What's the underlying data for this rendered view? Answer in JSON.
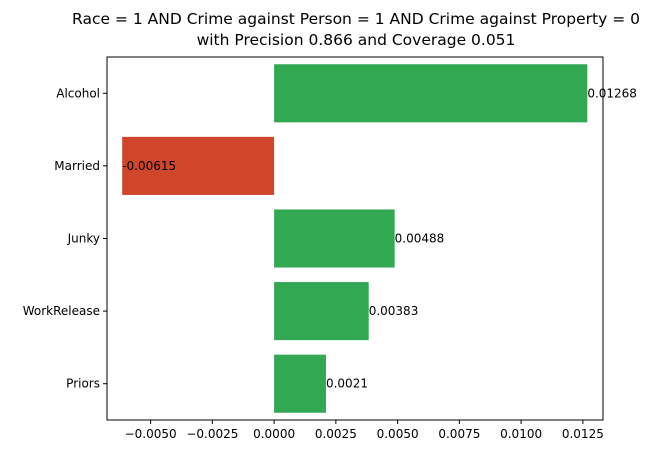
{
  "chart_data": {
    "type": "bar",
    "orientation": "horizontal",
    "title_lines": [
      "Race = 1 AND Crime against Person = 1 AND Crime against Property = 0",
      "with Precision 0.866 and Coverage 0.051"
    ],
    "xlabel": "",
    "ylabel": "",
    "categories": [
      "Alcohol",
      "Married",
      "Junky",
      "WorkRelease",
      "Priors"
    ],
    "values": [
      0.01268,
      -0.00615,
      0.00488,
      0.00383,
      0.0021
    ],
    "value_labels": [
      "0.01268",
      "-0.00615",
      "0.00488",
      "0.00383",
      "0.0021"
    ],
    "xlim": [
      -0.006765,
      0.013315
    ],
    "xticks": [
      -0.005,
      -0.0025,
      0.0,
      0.0025,
      0.005,
      0.0075,
      0.01,
      0.0125
    ],
    "xtick_labels": [
      "−0.0050",
      "−0.0025",
      "0.0000",
      "0.0025",
      "0.0050",
      "0.0075",
      "0.0100",
      "0.0125"
    ],
    "grid": false,
    "legend": "none",
    "colors": {
      "positive": "#33a853",
      "negative": "#d0462a"
    }
  }
}
